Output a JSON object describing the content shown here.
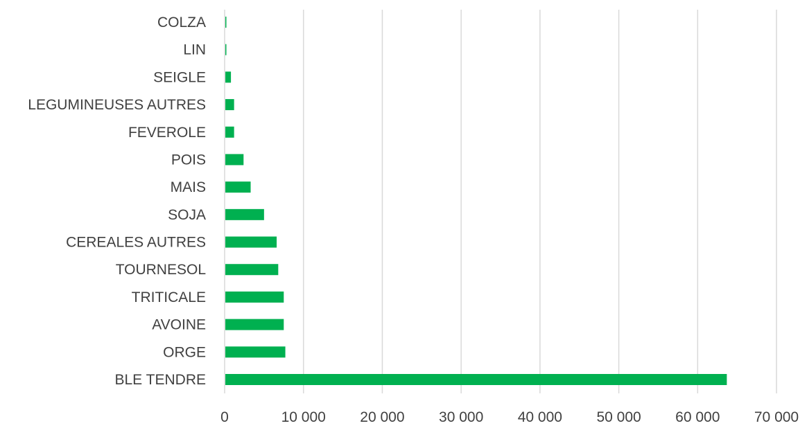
{
  "chart_data": {
    "type": "bar",
    "orientation": "horizontal",
    "categories": [
      "BLE TENDRE",
      "ORGE",
      "AVOINE",
      "TRITICALE",
      "TOURNESOL",
      "CEREALES AUTRES",
      "SOJA",
      "MAIS",
      "POIS",
      "FEVEROLE",
      "LEGUMINEUSES AUTRES",
      "SEIGLE",
      "LIN",
      "COLZA"
    ],
    "values": [
      63700,
      7700,
      7500,
      7500,
      6800,
      6600,
      5000,
      3300,
      2400,
      1200,
      1200,
      800,
      150,
      150
    ],
    "xlim": [
      0,
      70000
    ],
    "x_ticks": [
      0,
      10000,
      20000,
      30000,
      40000,
      50000,
      60000,
      70000
    ],
    "x_tick_labels": [
      "0",
      "10 000",
      "20 000",
      "30 000",
      "40 000",
      "50 000",
      "60 000",
      "70 000"
    ],
    "title": "",
    "xlabel": "",
    "ylabel": "",
    "grid": true,
    "legend": "none",
    "bar_color": "#00b050",
    "gridline_color": "#d9d9d9",
    "text_color": "#404040"
  }
}
